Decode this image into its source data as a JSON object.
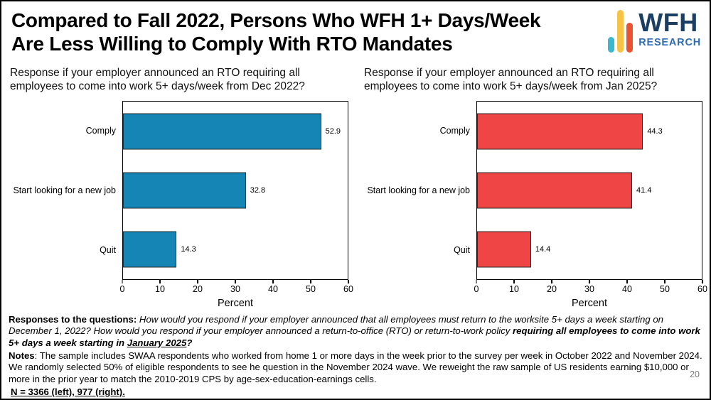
{
  "header": {
    "title_line1": "Compared to Fall 2022, Persons Who WFH 1+ Days/Week",
    "title_line2": "Are Less Willing to Comply With RTO Mandates",
    "logo": {
      "wfh": "WFH",
      "research": "RESEARCH"
    }
  },
  "colors": {
    "left_bar": "#1585b5",
    "right_bar": "#f04545",
    "logo_wfh_text": "#1b3f63",
    "logo_research_text": "#2e6db4",
    "logo_teal": "#3bb8d0",
    "logo_yellow": "#f6c row344",
    "logo_orange": "#e8542f"
  },
  "chart_data": [
    {
      "type": "bar",
      "orientation": "horizontal",
      "title": "Response if your employer announced an RTO requiring all employees to come into work 5+ days/week from Dec 2022?",
      "categories": [
        "Comply",
        "Start looking for a new job",
        "Quit"
      ],
      "values": [
        52.9,
        32.8,
        14.3
      ],
      "color": "#1585b5",
      "xlabel": "Percent",
      "xlim": [
        0,
        60
      ],
      "ticks": [
        0,
        10,
        20,
        30,
        40,
        50,
        60
      ],
      "grid": false,
      "legend": "none"
    },
    {
      "type": "bar",
      "orientation": "horizontal",
      "title": "Response if your employer announced an RTO requiring all employees to come into work 5+ days/week from Jan 2025?",
      "categories": [
        "Comply",
        "Start looking for a new job",
        "Quit"
      ],
      "values": [
        44.3,
        41.4,
        14.4
      ],
      "color": "#f04545",
      "xlabel": "Percent",
      "xlim": [
        0,
        60
      ],
      "ticks": [
        0,
        10,
        20,
        30,
        40,
        50,
        60
      ],
      "grid": false,
      "legend": "none"
    }
  ],
  "footer": {
    "q_label": "Responses to the questions:",
    "q_italic": " How would you respond if your employer announced that all employees must return to the worksite 5+ days a week starting on December 1, 2022? How would you respond if your employer announced a return-to-office (RTO) or return-to-work policy ",
    "q_bold_italic": "requiring all employees to come into work 5+ days a week starting in ",
    "q_underline": "January 2025",
    "q_end": "?",
    "notes_label": "Notes",
    "notes_text": ": The sample includes SWAA respondents who worked from home 1 or more days in the week prior to the survey per week in October 2022 and November 2024. We randomly selected 50% of eligible respondents to see he question in the November 2024 wave. We reweight the raw sample of US residents earning $10,000 or more in the prior year to match the 2010-2019 CPS by age-sex-education-earnings cells.",
    "n_text": "N = 3366 (left), 977 (right).",
    "page_number": "20"
  }
}
